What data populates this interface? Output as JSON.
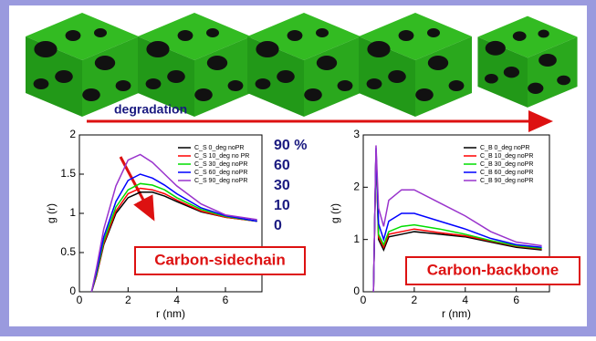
{
  "header": {
    "arrow_label": "degradation"
  },
  "chart_data": [
    {
      "type": "line",
      "annotation": "Carbon-sidechain",
      "percent_labels": [
        "90 %",
        "60",
        "30",
        "10",
        "0"
      ],
      "xlabel": "r (nm)",
      "ylabel": "g (r)",
      "xlim": [
        0,
        7.5
      ],
      "ylim": [
        0,
        2
      ],
      "xticks": [
        0,
        2,
        4,
        6
      ],
      "yticks": [
        0,
        0.5,
        1,
        1.5,
        2
      ],
      "x": [
        0.5,
        0.7,
        1,
        1.5,
        2,
        2.5,
        3,
        3.5,
        4,
        5,
        6,
        7.3
      ],
      "series": [
        {
          "name": "C_S 0_deg noPR",
          "color": "#000000",
          "values": [
            0,
            0.2,
            0.6,
            1.0,
            1.2,
            1.27,
            1.27,
            1.22,
            1.15,
            1.02,
            0.95,
            0.9
          ]
        },
        {
          "name": "C_S 10_deg no PR",
          "color": "#ff0000",
          "values": [
            0,
            0.2,
            0.62,
            1.03,
            1.25,
            1.32,
            1.3,
            1.25,
            1.17,
            1.03,
            0.95,
            0.9
          ]
        },
        {
          "name": "C_S 30_deg noPR",
          "color": "#00dd00",
          "values": [
            0,
            0.22,
            0.65,
            1.08,
            1.3,
            1.38,
            1.36,
            1.3,
            1.2,
            1.05,
            0.96,
            0.9
          ]
        },
        {
          "name": "C_S 60_deg noPR",
          "color": "#0000ff",
          "values": [
            0,
            0.25,
            0.7,
            1.15,
            1.42,
            1.5,
            1.45,
            1.36,
            1.25,
            1.07,
            0.97,
            0.9
          ]
        },
        {
          "name": "C_S 90_deg noPR",
          "color": "#9933cc",
          "values": [
            0,
            0.3,
            0.8,
            1.35,
            1.68,
            1.75,
            1.65,
            1.5,
            1.35,
            1.12,
            0.98,
            0.92
          ]
        }
      ]
    },
    {
      "type": "line",
      "annotation": "Carbon-backbone",
      "xlabel": "r (nm)",
      "ylabel": "g (r)",
      "xlim": [
        0,
        7.3
      ],
      "ylim": [
        0,
        3
      ],
      "xticks": [
        0,
        2,
        4,
        6
      ],
      "yticks": [
        0,
        1,
        2,
        3
      ],
      "x": [
        0.4,
        0.5,
        0.6,
        0.8,
        1,
        1.5,
        2,
        3,
        4,
        5,
        6,
        7
      ],
      "series": [
        {
          "name": "C_B 0_deg noPR",
          "color": "#000000",
          "values": [
            0,
            2.7,
            1.0,
            0.8,
            1.05,
            1.1,
            1.15,
            1.1,
            1.05,
            0.95,
            0.85,
            0.8
          ]
        },
        {
          "name": "C_B 10_deg noPR",
          "color": "#ff0000",
          "values": [
            0,
            2.7,
            1.05,
            0.85,
            1.1,
            1.15,
            1.2,
            1.13,
            1.07,
            0.97,
            0.87,
            0.82
          ]
        },
        {
          "name": "C_B 30_deg noPR",
          "color": "#00dd00",
          "values": [
            0,
            2.7,
            1.1,
            0.9,
            1.15,
            1.25,
            1.28,
            1.2,
            1.1,
            0.98,
            0.88,
            0.83
          ]
        },
        {
          "name": "C_B 60_deg noPR",
          "color": "#0000ff",
          "values": [
            0,
            2.75,
            1.3,
            1.0,
            1.35,
            1.5,
            1.5,
            1.35,
            1.2,
            1.02,
            0.9,
            0.85
          ]
        },
        {
          "name": "C_B 90_deg noPR",
          "color": "#9933cc",
          "values": [
            0,
            2.8,
            1.6,
            1.25,
            1.75,
            1.95,
            1.95,
            1.7,
            1.45,
            1.15,
            0.95,
            0.88
          ]
        }
      ]
    }
  ]
}
